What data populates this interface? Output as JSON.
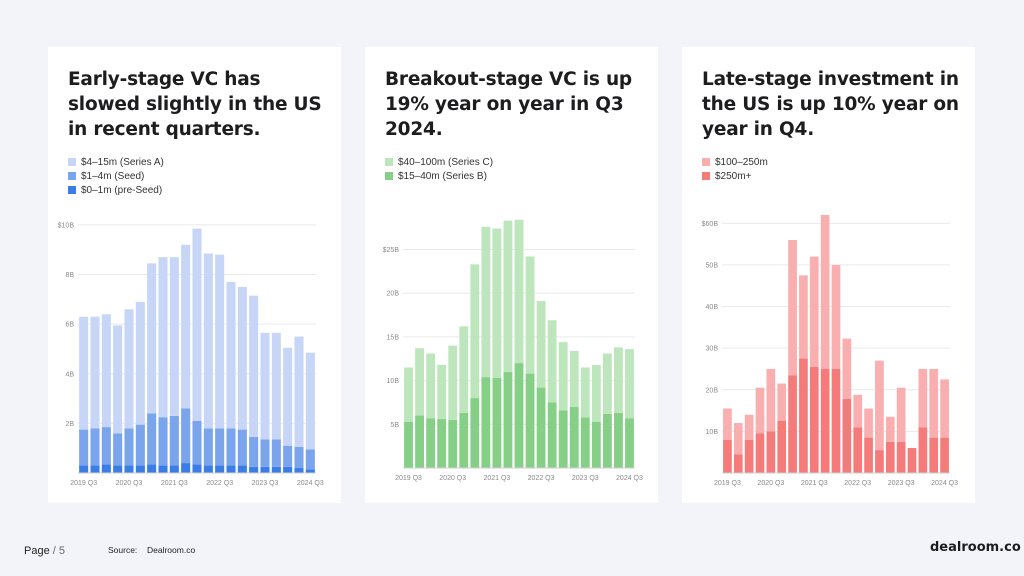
{
  "page": {
    "label": "Page",
    "separator": "/",
    "number": "5"
  },
  "source": {
    "label": "Source:",
    "value": "Dealroom.co"
  },
  "brand": "dealroom.co",
  "chart_data": [
    {
      "type": "bar",
      "stacked": true,
      "title": "Early-stage VC has slowed slightly in the US in recent quarters.",
      "categories": [
        "2019 Q3",
        "2019 Q4",
        "2020 Q1",
        "2020 Q2",
        "2020 Q3",
        "2020 Q4",
        "2021 Q1",
        "2021 Q2",
        "2021 Q3",
        "2021 Q4",
        "2022 Q1",
        "2022 Q2",
        "2022 Q3",
        "2022 Q4",
        "2023 Q1",
        "2023 Q2",
        "2023 Q3",
        "2023 Q4",
        "2024 Q1",
        "2024 Q2",
        "2024 Q3"
      ],
      "x_tick_labels": [
        "2019 Q3",
        "2020 Q3",
        "2021 Q3",
        "2022 Q3",
        "2023 Q3",
        "2024 Q3"
      ],
      "y_ticks": [
        2,
        4,
        6,
        8,
        10
      ],
      "y_tick_labels": [
        "2B",
        "4B",
        "6B",
        "8B",
        "$10B"
      ],
      "ylim": [
        0,
        10.4
      ],
      "series": [
        {
          "name": "$0–1m (pre-Seed)",
          "color": "#3a7de4",
          "values": [
            0.3,
            0.3,
            0.35,
            0.3,
            0.3,
            0.3,
            0.35,
            0.3,
            0.3,
            0.4,
            0.35,
            0.3,
            0.3,
            0.3,
            0.3,
            0.25,
            0.25,
            0.25,
            0.25,
            0.2,
            0.15
          ]
        },
        {
          "name": "$1–4m (Seed)",
          "color": "#7aa4ec",
          "values": [
            1.45,
            1.5,
            1.5,
            1.3,
            1.5,
            1.65,
            2.05,
            1.95,
            2.0,
            2.2,
            1.75,
            1.5,
            1.5,
            1.5,
            1.45,
            1.2,
            1.1,
            1.1,
            0.85,
            0.85,
            0.8
          ]
        },
        {
          "name": "$4–15m (Series A)",
          "color": "#c7d6f7",
          "values": [
            4.55,
            4.5,
            4.55,
            4.35,
            4.8,
            4.95,
            6.05,
            6.45,
            6.4,
            6.6,
            7.75,
            7.05,
            7.0,
            5.9,
            5.75,
            5.7,
            4.3,
            4.3,
            3.95,
            4.45,
            3.9
          ]
        }
      ],
      "legend_order": [
        "$4–15m (Series A)",
        "$1–4m (Seed)",
        "$0–1m (pre-Seed)"
      ]
    },
    {
      "type": "bar",
      "stacked": true,
      "title": "Breakout-stage VC is up 19% year on year in Q3 2024.",
      "categories": [
        "2019 Q3",
        "2019 Q4",
        "2020 Q1",
        "2020 Q2",
        "2020 Q3",
        "2020 Q4",
        "2021 Q1",
        "2021 Q2",
        "2021 Q3",
        "2021 Q4",
        "2022 Q1",
        "2022 Q2",
        "2022 Q3",
        "2022 Q4",
        "2023 Q1",
        "2023 Q2",
        "2023 Q3",
        "2023 Q4",
        "2024 Q1",
        "2024 Q2",
        "2024 Q3"
      ],
      "x_tick_labels": [
        "2019 Q3",
        "2020 Q3",
        "2021 Q3",
        "2022 Q3",
        "2023 Q3",
        "2024 Q3"
      ],
      "y_ticks": [
        5,
        10,
        15,
        20,
        25
      ],
      "y_tick_labels": [
        "5B",
        "10B",
        "15B",
        "20B",
        "$25B"
      ],
      "ylim": [
        0,
        27
      ],
      "series": [
        {
          "name": "$15–40m (Series B)",
          "color": "#86cf86",
          "values": [
            5.3,
            6.0,
            5.7,
            5.6,
            5.5,
            6.3,
            8.0,
            10.4,
            10.3,
            11.0,
            12.0,
            10.8,
            9.2,
            7.5,
            6.6,
            7.0,
            5.8,
            5.3,
            6.2,
            6.3,
            5.7
          ]
        },
        {
          "name": "$40–100m (Series C)",
          "color": "#bde6bc",
          "values": [
            6.2,
            7.7,
            7.4,
            6.2,
            8.5,
            9.9,
            15.3,
            17.2,
            17.1,
            17.3,
            16.4,
            13.4,
            9.9,
            9.4,
            7.8,
            6.4,
            5.7,
            6.5,
            6.9,
            7.5,
            7.9
          ]
        }
      ],
      "legend_order": [
        "$40–100m (Series C)",
        "$15–40m (Series B)"
      ]
    },
    {
      "type": "bar",
      "stacked": true,
      "title": "Late-stage investment in the US is up 10% year on year in Q4.",
      "categories": [
        "2019 Q3",
        "2019 Q4",
        "2020 Q1",
        "2020 Q2",
        "2020 Q3",
        "2020 Q4",
        "2021 Q1",
        "2021 Q2",
        "2021 Q3",
        "2021 Q4",
        "2022 Q1",
        "2022 Q2",
        "2022 Q3",
        "2022 Q4",
        "2023 Q1",
        "2023 Q2",
        "2023 Q3",
        "2023 Q4",
        "2024 Q1",
        "2024 Q2",
        "2024 Q3"
      ],
      "x_tick_labels": [
        "2019 Q3",
        "2020 Q3",
        "2021 Q3",
        "2022 Q3",
        "2023 Q3",
        "2024 Q3"
      ],
      "y_ticks": [
        10,
        20,
        30,
        40,
        50,
        60
      ],
      "y_tick_labels": [
        "10B",
        "20B",
        "30B",
        "40B",
        "50B",
        "$60B"
      ],
      "ylim": [
        0,
        62
      ],
      "series": [
        {
          "name": "$250m+",
          "color": "#f57a7a",
          "values": [
            8.0,
            4.5,
            8.0,
            9.5,
            10.0,
            12.5,
            23.5,
            27.5,
            25.5,
            25.0,
            25.0,
            17.8,
            11.0,
            8.5,
            5.5,
            7.5,
            7.5,
            6.0,
            11.0,
            8.5,
            8.5
          ]
        },
        {
          "name": "$100–250m",
          "color": "#f9aeb0",
          "values": [
            7.5,
            7.5,
            6.0,
            11.0,
            15.0,
            9.0,
            32.5,
            20.0,
            26.5,
            37.0,
            25.0,
            14.5,
            7.8,
            7.0,
            21.5,
            6.0,
            13.0,
            0.0,
            14.0,
            16.5,
            14.0
          ]
        }
      ],
      "legend_order": [
        "$100–250m",
        "$250m+"
      ]
    }
  ]
}
